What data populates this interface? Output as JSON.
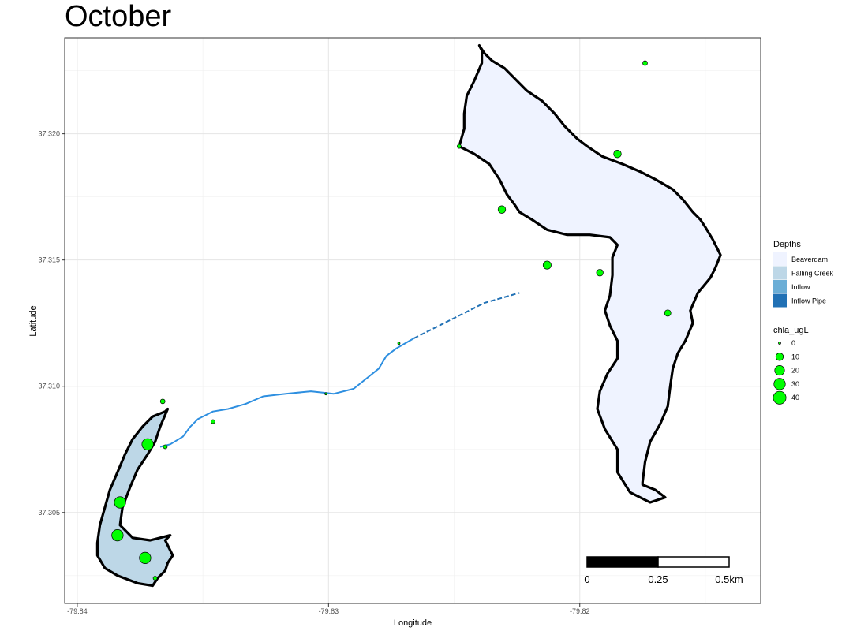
{
  "title": "October",
  "chart_data": {
    "type": "map",
    "xlabel": "Longitude",
    "ylabel": "Latitude",
    "xlim": [
      -79.8405,
      -79.8128
    ],
    "ylim": [
      37.3014,
      37.3238
    ],
    "x_ticks": [
      {
        "value": -79.84,
        "label": "-79.84"
      },
      {
        "value": -79.83,
        "label": "-79.83"
      },
      {
        "value": -79.82,
        "label": "-79.82"
      }
    ],
    "y_ticks": [
      {
        "value": 37.305,
        "label": "37.305"
      },
      {
        "value": 37.31,
        "label": "37.310"
      },
      {
        "value": 37.315,
        "label": "37.315"
      },
      {
        "value": 37.32,
        "label": "37.320"
      }
    ],
    "grid": true,
    "legend_placement": "right",
    "depths_legend": {
      "title": "Depths",
      "items": [
        {
          "label": "Beaverdam",
          "color": "#eff3ff"
        },
        {
          "label": "Falling Creek",
          "color": "#bdd7e7"
        },
        {
          "label": "Inflow",
          "color": "#6baed6"
        },
        {
          "label": "Inflow Pipe",
          "color": "#2171b5"
        }
      ]
    },
    "size_legend": {
      "title": "chla_ugL",
      "items": [
        {
          "label": "0",
          "value": 0
        },
        {
          "label": "10",
          "value": 10
        },
        {
          "label": "20",
          "value": 20
        },
        {
          "label": "30",
          "value": 30
        },
        {
          "label": "40",
          "value": 40
        }
      ]
    },
    "point_color": "#00ff00",
    "inflow_color": "#2e8fe0",
    "inflow_pipe_color": "#2171b5",
    "beaverdam_outline": [
      [
        -79.8248,
        37.3195
      ],
      [
        -79.8242,
        37.3192
      ],
      [
        -79.8236,
        37.3188
      ],
      [
        -79.8232,
        37.3182
      ],
      [
        -79.8229,
        37.3176
      ],
      [
        -79.8226,
        37.3172
      ],
      [
        -79.8224,
        37.3169
      ],
      [
        -79.8219,
        37.3166
      ],
      [
        -79.8213,
        37.3162
      ],
      [
        -79.8205,
        37.316
      ],
      [
        -79.8196,
        37.316
      ],
      [
        -79.8188,
        37.3159
      ],
      [
        -79.8185,
        37.3156
      ],
      [
        -79.8187,
        37.3151
      ],
      [
        -79.8187,
        37.3144
      ],
      [
        -79.8188,
        37.3136
      ],
      [
        -79.819,
        37.313
      ],
      [
        -79.8188,
        37.3124
      ],
      [
        -79.8185,
        37.3118
      ],
      [
        -79.8185,
        37.3111
      ],
      [
        -79.8189,
        37.3105
      ],
      [
        -79.8192,
        37.3098
      ],
      [
        -79.8193,
        37.3091
      ],
      [
        -79.819,
        37.3083
      ],
      [
        -79.8185,
        37.3075
      ],
      [
        -79.8185,
        37.3066
      ],
      [
        -79.818,
        37.3058
      ],
      [
        -79.8172,
        37.3054
      ],
      [
        -79.8166,
        37.3056
      ],
      [
        -79.817,
        37.3059
      ],
      [
        -79.8175,
        37.3061
      ],
      [
        -79.8175,
        37.3062
      ],
      [
        -79.8174,
        37.307
      ],
      [
        -79.8172,
        37.3078
      ],
      [
        -79.8168,
        37.3085
      ],
      [
        -79.8165,
        37.3092
      ],
      [
        -79.8164,
        37.31
      ],
      [
        -79.8163,
        37.3107
      ],
      [
        -79.8161,
        37.3113
      ],
      [
        -79.8158,
        37.3118
      ],
      [
        -79.8155,
        37.3125
      ],
      [
        -79.8156,
        37.313
      ],
      [
        -79.8153,
        37.3137
      ],
      [
        -79.8148,
        37.3143
      ],
      [
        -79.8146,
        37.3147
      ],
      [
        -79.8144,
        37.3152
      ],
      [
        -79.8147,
        37.3158
      ],
      [
        -79.815,
        37.3163
      ],
      [
        -79.8152,
        37.3166
      ],
      [
        -79.8155,
        37.3169
      ],
      [
        -79.8159,
        37.3174
      ],
      [
        -79.8163,
        37.3178
      ],
      [
        -79.817,
        37.3182
      ],
      [
        -79.8176,
        37.3185
      ],
      [
        -79.8183,
        37.3188
      ],
      [
        -79.8191,
        37.3191
      ],
      [
        -79.8197,
        37.3195
      ],
      [
        -79.8201,
        37.3198
      ],
      [
        -79.8206,
        37.3203
      ],
      [
        -79.821,
        37.3208
      ],
      [
        -79.8215,
        37.3213
      ],
      [
        -79.8221,
        37.3217
      ],
      [
        -79.8225,
        37.3221
      ],
      [
        -79.823,
        37.3226
      ],
      [
        -79.8235,
        37.3229
      ],
      [
        -79.8238,
        37.3232
      ],
      [
        -79.824,
        37.3235
      ],
      [
        -79.8239,
        37.3233
      ],
      [
        -79.8239,
        37.3228
      ],
      [
        -79.8242,
        37.3221
      ],
      [
        -79.8245,
        37.3215
      ],
      [
        -79.8246,
        37.3208
      ],
      [
        -79.8246,
        37.3202
      ],
      [
        -79.8248,
        37.3195
      ]
    ],
    "falling_creek_outline": [
      [
        -79.8365,
        37.309
      ],
      [
        -79.837,
        37.3088
      ],
      [
        -79.8374,
        37.3084
      ],
      [
        -79.8378,
        37.3079
      ],
      [
        -79.8381,
        37.3073
      ],
      [
        -79.8384,
        37.3066
      ],
      [
        -79.8387,
        37.3059
      ],
      [
        -79.8389,
        37.3052
      ],
      [
        -79.8391,
        37.3045
      ],
      [
        -79.8392,
        37.3038
      ],
      [
        -79.8392,
        37.3033
      ],
      [
        -79.8389,
        37.3028
      ],
      [
        -79.8384,
        37.3025
      ],
      [
        -79.8376,
        37.3022
      ],
      [
        -79.837,
        37.3021
      ],
      [
        -79.8368,
        37.3024
      ],
      [
        -79.8365,
        37.3027
      ],
      [
        -79.8364,
        37.303
      ],
      [
        -79.8362,
        37.3033
      ],
      [
        -79.8365,
        37.3039
      ],
      [
        -79.8363,
        37.3041
      ],
      [
        -79.8371,
        37.3039
      ],
      [
        -79.8378,
        37.304
      ],
      [
        -79.8383,
        37.3045
      ],
      [
        -79.8382,
        37.3052
      ],
      [
        -79.8379,
        37.306
      ],
      [
        -79.8376,
        37.3067
      ],
      [
        -79.8372,
        37.3073
      ],
      [
        -79.8369,
        37.3078
      ],
      [
        -79.8367,
        37.3084
      ],
      [
        -79.8364,
        37.3091
      ],
      [
        -79.8365,
        37.309
      ]
    ],
    "inflow_line": [
      [
        -79.8367,
        37.3076
      ],
      [
        -79.8363,
        37.3077
      ],
      [
        -79.8358,
        37.308
      ],
      [
        -79.8355,
        37.3084
      ],
      [
        -79.8352,
        37.3087
      ],
      [
        -79.8346,
        37.309
      ],
      [
        -79.834,
        37.3091
      ],
      [
        -79.8333,
        37.3093
      ],
      [
        -79.8326,
        37.3096
      ],
      [
        -79.8317,
        37.3097
      ],
      [
        -79.8307,
        37.3098
      ],
      [
        -79.8298,
        37.3097
      ],
      [
        -79.829,
        37.3099
      ],
      [
        -79.8285,
        37.3103
      ],
      [
        -79.828,
        37.3107
      ],
      [
        -79.8277,
        37.3112
      ],
      [
        -79.8273,
        37.3115
      ],
      [
        -79.8266,
        37.3119
      ]
    ],
    "inflow_pipe_line": [
      [
        -79.8266,
        37.3119
      ],
      [
        -79.8252,
        37.3126
      ],
      [
        -79.8238,
        37.3133
      ],
      [
        -79.8224,
        37.3137
      ]
    ],
    "points": [
      {
        "lon": -79.8174,
        "lat": 37.3228,
        "chla": 2
      },
      {
        "lon": -79.8185,
        "lat": 37.3192,
        "chla": 10
      },
      {
        "lon": -79.8248,
        "lat": 37.3195,
        "chla": 1
      },
      {
        "lon": -79.8231,
        "lat": 37.317,
        "chla": 10
      },
      {
        "lon": -79.8213,
        "lat": 37.3148,
        "chla": 12
      },
      {
        "lon": -79.8192,
        "lat": 37.3145,
        "chla": 7
      },
      {
        "lon": -79.8165,
        "lat": 37.3129,
        "chla": 6
      },
      {
        "lon": -79.8272,
        "lat": 37.3117,
        "chla": 0
      },
      {
        "lon": -79.8301,
        "lat": 37.3097,
        "chla": 0
      },
      {
        "lon": -79.8346,
        "lat": 37.3086,
        "chla": 1
      },
      {
        "lon": -79.8366,
        "lat": 37.3094,
        "chla": 2
      },
      {
        "lon": -79.8365,
        "lat": 37.3076,
        "chla": 1
      },
      {
        "lon": -79.8372,
        "lat": 37.3077,
        "chla": 30
      },
      {
        "lon": -79.8383,
        "lat": 37.3054,
        "chla": 30
      },
      {
        "lon": -79.8384,
        "lat": 37.3041,
        "chla": 30
      },
      {
        "lon": -79.8373,
        "lat": 37.3032,
        "chla": 30
      },
      {
        "lon": -79.8369,
        "lat": 37.3024,
        "chla": 1
      }
    ],
    "scale_bar": {
      "labels": [
        "0",
        "0.25",
        "0.5km"
      ],
      "fill_colors": [
        "#000000",
        "#ffffff"
      ]
    }
  }
}
